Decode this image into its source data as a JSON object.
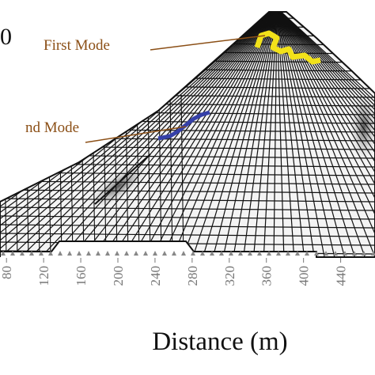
{
  "chart_data": {
    "type": "mesh",
    "xlabel": "Distance (m)",
    "xlim": [
      73,
      477
    ],
    "xticks": [
      80,
      120,
      160,
      200,
      240,
      280,
      320,
      360,
      400,
      440
    ],
    "annotations": [
      {
        "text": "0"
      },
      {
        "text": "First Mode"
      },
      {
        "text": "nd Mode"
      }
    ]
  }
}
